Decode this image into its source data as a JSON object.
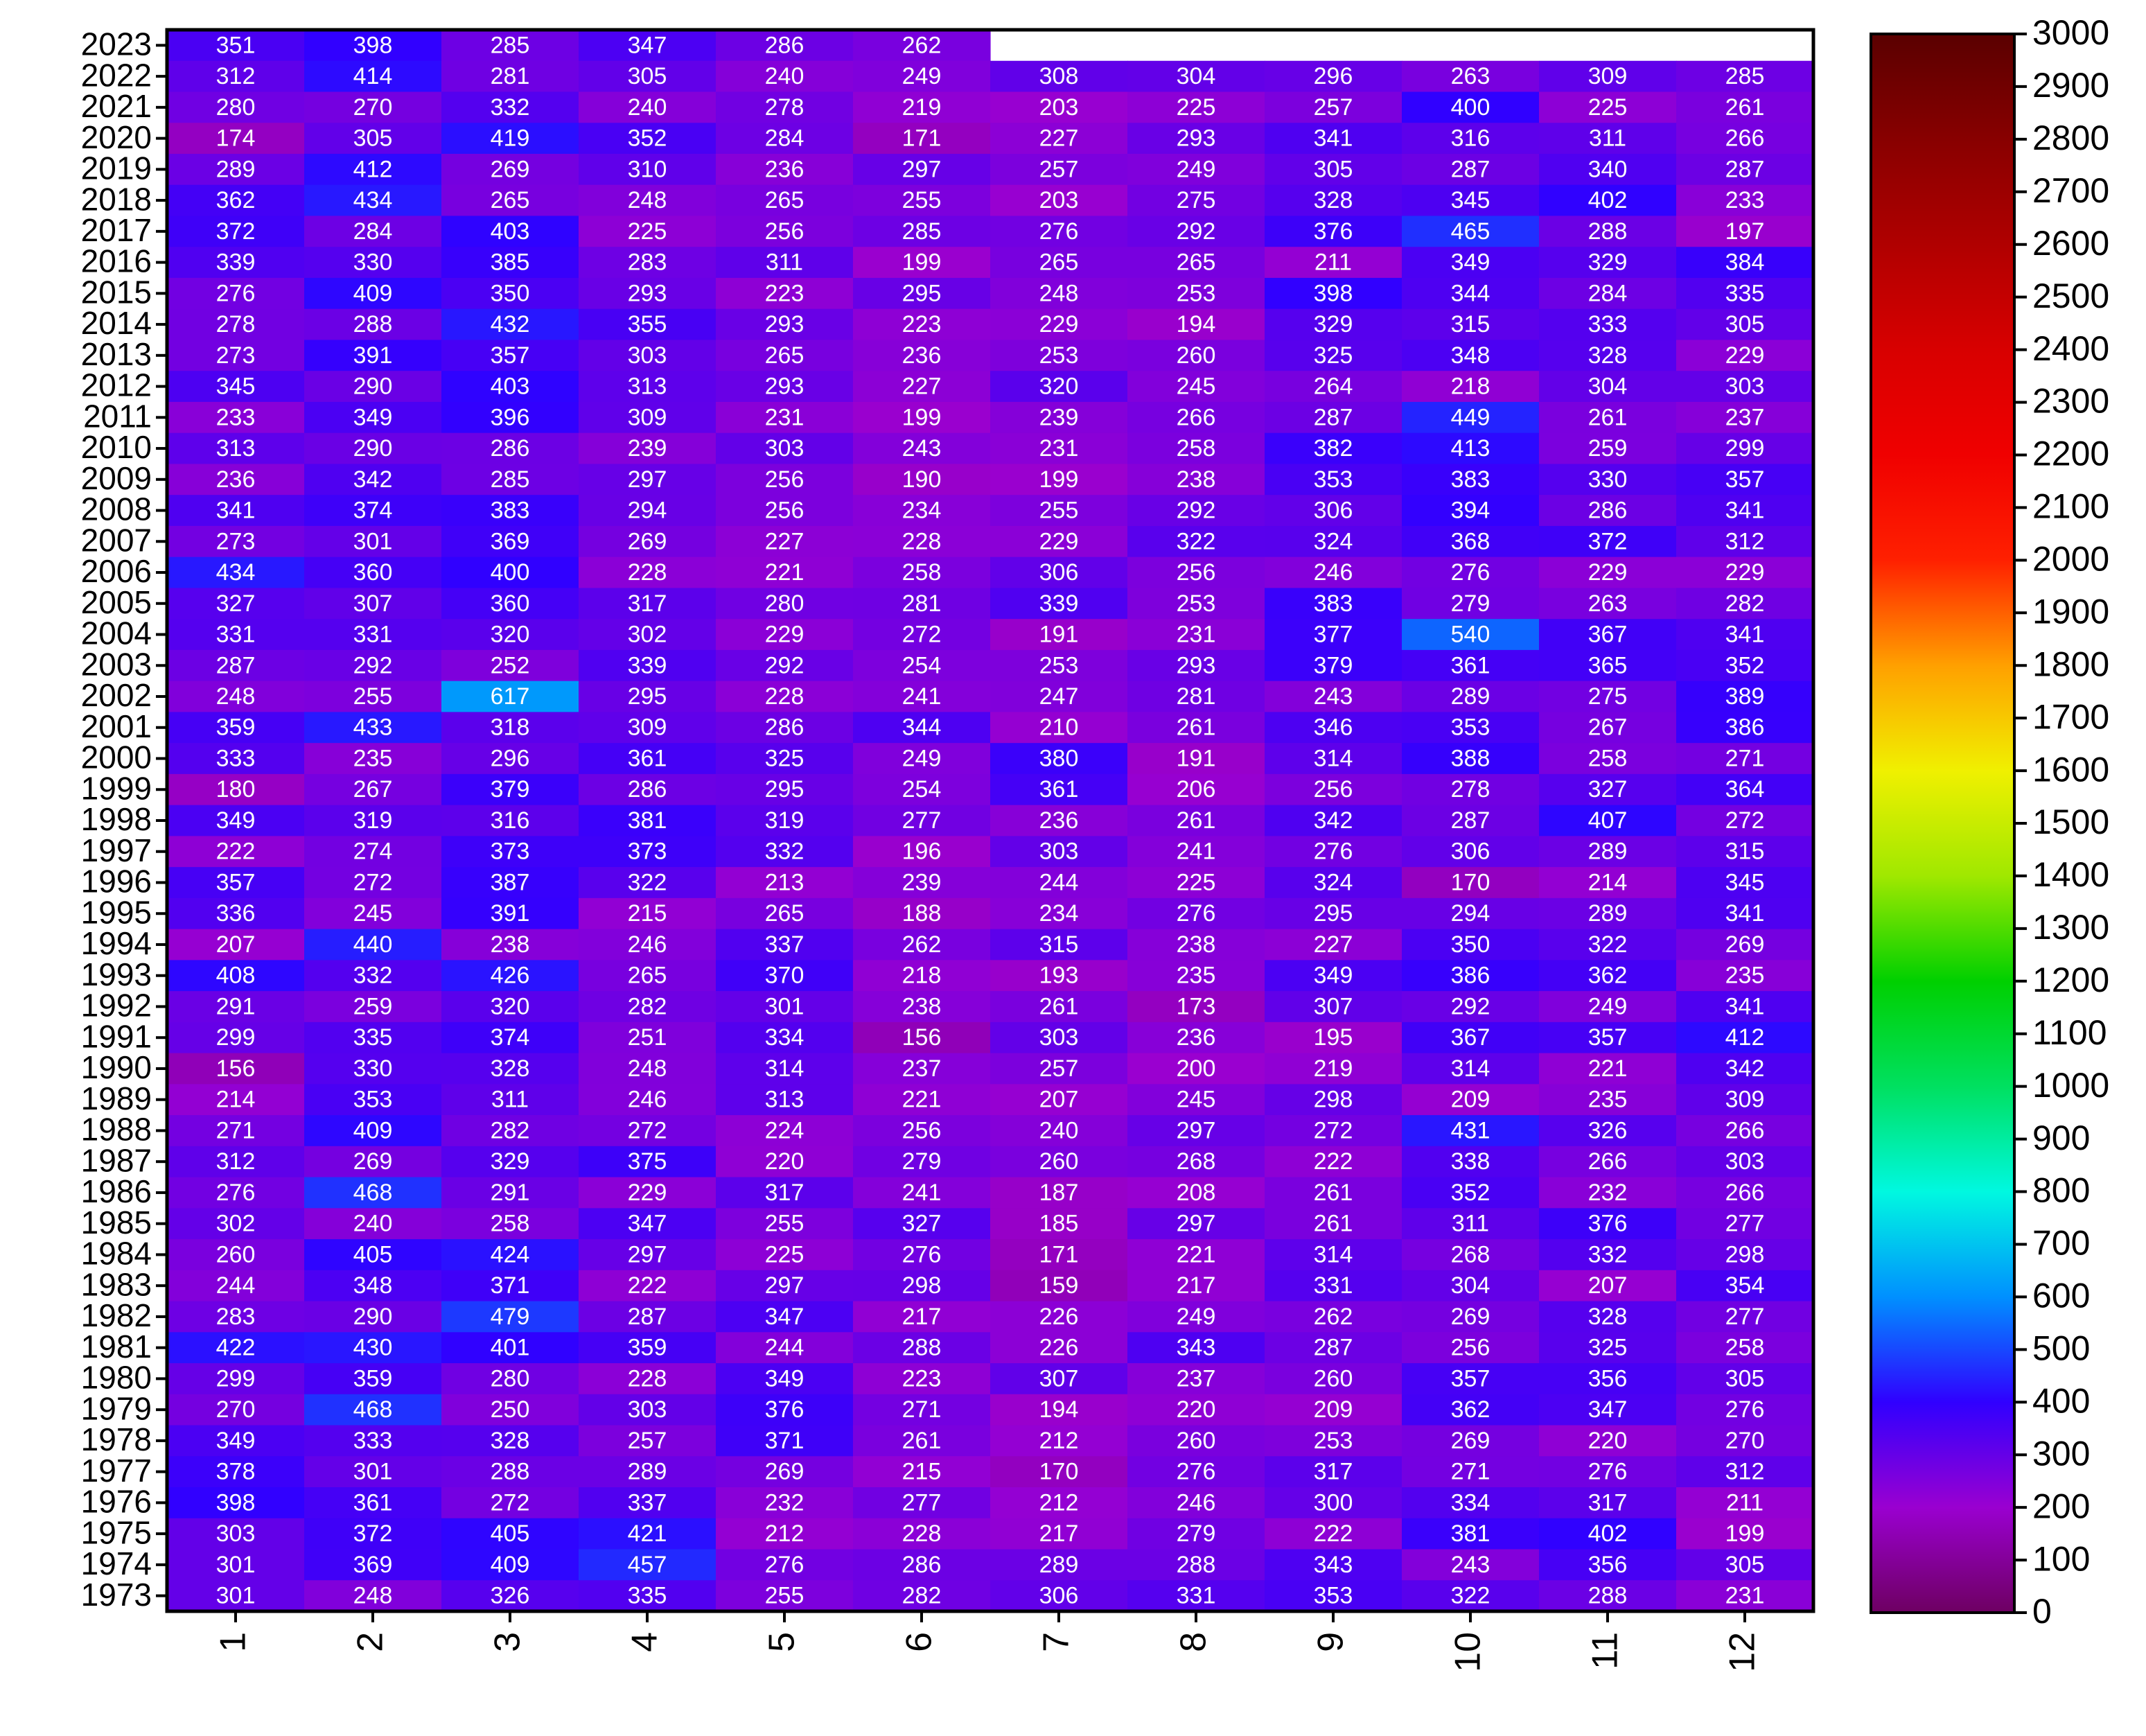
{
  "chart_data": {
    "type": "heatmap",
    "x": [
      "1",
      "2",
      "3",
      "4",
      "5",
      "6",
      "7",
      "8",
      "9",
      "10",
      "11",
      "12"
    ],
    "y": [
      "2023",
      "2022",
      "2021",
      "2020",
      "2019",
      "2018",
      "2017",
      "2016",
      "2015",
      "2014",
      "2013",
      "2012",
      "2011",
      "2010",
      "2009",
      "2008",
      "2007",
      "2006",
      "2005",
      "2004",
      "2003",
      "2002",
      "2001",
      "2000",
      "1999",
      "1998",
      "1997",
      "1996",
      "1995",
      "1994",
      "1993",
      "1992",
      "1991",
      "1990",
      "1989",
      "1988",
      "1987",
      "1986",
      "1985",
      "1984",
      "1983",
      "1982",
      "1981",
      "1980",
      "1979",
      "1978",
      "1977",
      "1976",
      "1975",
      "1974",
      "1973"
    ],
    "values": [
      [
        351,
        398,
        285,
        347,
        286,
        262,
        null,
        null,
        null,
        null,
        null,
        null
      ],
      [
        312,
        414,
        281,
        305,
        240,
        249,
        308,
        304,
        296,
        263,
        309,
        285
      ],
      [
        280,
        270,
        332,
        240,
        278,
        219,
        203,
        225,
        257,
        400,
        225,
        261
      ],
      [
        174,
        305,
        419,
        352,
        284,
        171,
        227,
        293,
        341,
        316,
        311,
        266
      ],
      [
        289,
        412,
        269,
        310,
        236,
        297,
        257,
        249,
        305,
        287,
        340,
        287
      ],
      [
        362,
        434,
        265,
        248,
        265,
        255,
        203,
        275,
        328,
        345,
        402,
        233
      ],
      [
        372,
        284,
        403,
        225,
        256,
        285,
        276,
        292,
        376,
        465,
        288,
        197
      ],
      [
        339,
        330,
        385,
        283,
        311,
        199,
        265,
        265,
        211,
        349,
        329,
        384
      ],
      [
        276,
        409,
        350,
        293,
        223,
        295,
        248,
        253,
        398,
        344,
        284,
        335
      ],
      [
        278,
        288,
        432,
        355,
        293,
        223,
        229,
        194,
        329,
        315,
        333,
        305
      ],
      [
        273,
        391,
        357,
        303,
        265,
        236,
        253,
        260,
        325,
        348,
        328,
        229
      ],
      [
        345,
        290,
        403,
        313,
        293,
        227,
        320,
        245,
        264,
        218,
        304,
        303
      ],
      [
        233,
        349,
        396,
        309,
        231,
        199,
        239,
        266,
        287,
        449,
        261,
        237
      ],
      [
        313,
        290,
        286,
        239,
        303,
        243,
        231,
        258,
        382,
        413,
        259,
        299
      ],
      [
        236,
        342,
        285,
        297,
        256,
        190,
        199,
        238,
        353,
        383,
        330,
        357
      ],
      [
        341,
        374,
        383,
        294,
        256,
        234,
        255,
        292,
        306,
        394,
        286,
        341
      ],
      [
        273,
        301,
        369,
        269,
        227,
        228,
        229,
        322,
        324,
        368,
        372,
        312
      ],
      [
        434,
        360,
        400,
        228,
        221,
        258,
        306,
        256,
        246,
        276,
        229,
        229
      ],
      [
        327,
        307,
        360,
        317,
        280,
        281,
        339,
        253,
        383,
        279,
        263,
        282
      ],
      [
        331,
        331,
        320,
        302,
        229,
        272,
        191,
        231,
        377,
        540,
        367,
        341
      ],
      [
        287,
        292,
        252,
        339,
        292,
        254,
        253,
        293,
        379,
        361,
        365,
        352
      ],
      [
        248,
        255,
        617,
        295,
        228,
        241,
        247,
        281,
        243,
        289,
        275,
        389
      ],
      [
        359,
        433,
        318,
        309,
        286,
        344,
        210,
        261,
        346,
        353,
        267,
        386
      ],
      [
        333,
        235,
        296,
        361,
        325,
        249,
        380,
        191,
        314,
        388,
        258,
        271
      ],
      [
        180,
        267,
        379,
        286,
        295,
        254,
        361,
        206,
        256,
        278,
        327,
        364
      ],
      [
        349,
        319,
        316,
        381,
        319,
        277,
        236,
        261,
        342,
        287,
        407,
        272
      ],
      [
        222,
        274,
        373,
        373,
        332,
        196,
        303,
        241,
        276,
        306,
        289,
        315
      ],
      [
        357,
        272,
        387,
        322,
        213,
        239,
        244,
        225,
        324,
        170,
        214,
        345
      ],
      [
        336,
        245,
        391,
        215,
        265,
        188,
        234,
        276,
        295,
        294,
        289,
        341
      ],
      [
        207,
        440,
        238,
        246,
        337,
        262,
        315,
        238,
        227,
        350,
        322,
        269
      ],
      [
        408,
        332,
        426,
        265,
        370,
        218,
        193,
        235,
        349,
        386,
        362,
        235
      ],
      [
        291,
        259,
        320,
        282,
        301,
        238,
        261,
        173,
        307,
        292,
        249,
        341
      ],
      [
        299,
        335,
        374,
        251,
        334,
        156,
        303,
        236,
        195,
        367,
        357,
        412
      ],
      [
        156,
        330,
        328,
        248,
        314,
        237,
        257,
        200,
        219,
        314,
        221,
        342
      ],
      [
        214,
        353,
        311,
        246,
        313,
        221,
        207,
        245,
        298,
        209,
        235,
        309
      ],
      [
        271,
        409,
        282,
        272,
        224,
        256,
        240,
        297,
        272,
        431,
        326,
        266
      ],
      [
        312,
        269,
        329,
        375,
        220,
        279,
        260,
        268,
        222,
        338,
        266,
        303
      ],
      [
        276,
        468,
        291,
        229,
        317,
        241,
        187,
        208,
        261,
        352,
        232,
        266
      ],
      [
        302,
        240,
        258,
        347,
        255,
        327,
        185,
        297,
        261,
        311,
        376,
        277
      ],
      [
        260,
        405,
        424,
        297,
        225,
        276,
        171,
        221,
        314,
        268,
        332,
        298
      ],
      [
        244,
        348,
        371,
        222,
        297,
        298,
        159,
        217,
        331,
        304,
        207,
        354
      ],
      [
        283,
        290,
        479,
        287,
        347,
        217,
        226,
        249,
        262,
        269,
        328,
        277
      ],
      [
        422,
        430,
        401,
        359,
        244,
        288,
        226,
        343,
        287,
        256,
        325,
        258
      ],
      [
        299,
        359,
        280,
        228,
        349,
        223,
        307,
        237,
        260,
        357,
        356,
        305
      ],
      [
        270,
        468,
        250,
        303,
        376,
        271,
        194,
        220,
        209,
        362,
        347,
        276
      ],
      [
        349,
        333,
        328,
        257,
        371,
        261,
        212,
        260,
        253,
        269,
        220,
        270
      ],
      [
        378,
        301,
        288,
        289,
        269,
        215,
        170,
        276,
        317,
        271,
        276,
        312
      ],
      [
        398,
        361,
        272,
        337,
        232,
        277,
        212,
        246,
        300,
        334,
        317,
        211
      ],
      [
        303,
        372,
        405,
        421,
        212,
        228,
        217,
        279,
        222,
        381,
        402,
        199
      ],
      [
        301,
        369,
        409,
        457,
        276,
        286,
        289,
        288,
        343,
        243,
        356,
        305
      ],
      [
        301,
        248,
        326,
        335,
        255,
        282,
        306,
        331,
        353,
        322,
        288,
        231
      ]
    ],
    "zlim": [
      0,
      3000
    ],
    "zticks": [
      0,
      100,
      200,
      300,
      400,
      500,
      600,
      700,
      800,
      900,
      1000,
      1100,
      1200,
      1300,
      1400,
      1500,
      1600,
      1700,
      1800,
      1900,
      2000,
      2100,
      2200,
      2300,
      2400,
      2500,
      2600,
      2700,
      2800,
      2900,
      3000
    ],
    "colors": [
      "#6e0062",
      "#9a00d0",
      "#3000ff",
      "#0090ff",
      "#00f8e0",
      "#00e060",
      "#00d000",
      "#a0e800",
      "#f0f000",
      "#ffa000",
      "#ff2000",
      "#f00000",
      "#d80000",
      "#b00000",
      "#880000",
      "#5a0000"
    ]
  }
}
